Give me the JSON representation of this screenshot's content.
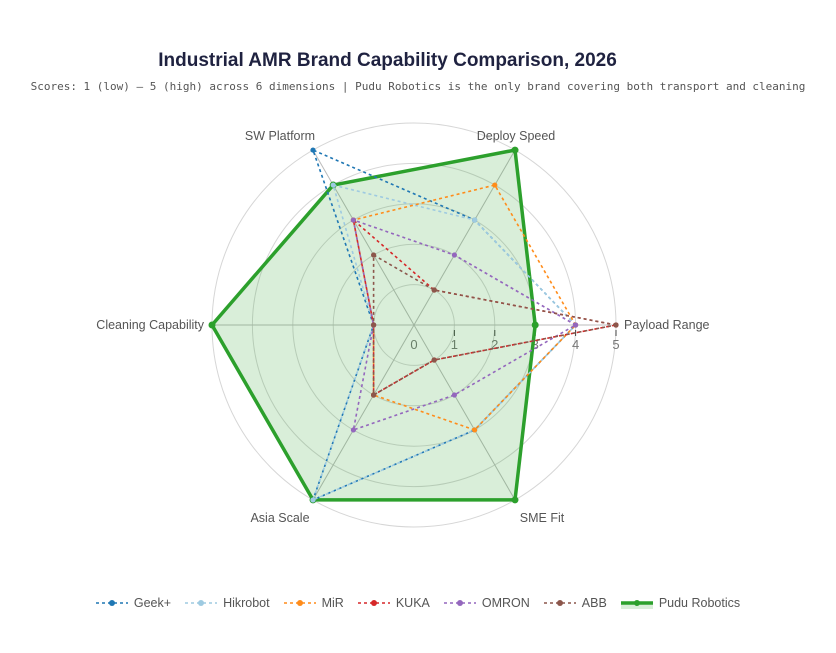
{
  "chart_data": {
    "type": "radar",
    "title": "Industrial AMR Brand Capability Comparison, 2026",
    "subtitle": "Scores: 1 (low) – 5 (high) across 6 dimensions | Pudu Robotics is the only brand covering both transport and cleaning",
    "axes": [
      "Payload Range",
      "Deploy Speed",
      "SW Platform",
      "Cleaning Capability",
      "Asia Scale",
      "SME Fit"
    ],
    "radial_range": [
      0,
      5
    ],
    "radial_ticks": [
      "0",
      "1",
      "2",
      "3",
      "4",
      "5"
    ],
    "legend_position": "bottom",
    "series": [
      {
        "name": "Geek+",
        "color": "#1f77b4",
        "values": [
          4,
          3,
          5,
          1,
          5,
          3
        ]
      },
      {
        "name": "Hikrobot",
        "color": "#9ecae1",
        "values": [
          4,
          3,
          4,
          1,
          5,
          3
        ]
      },
      {
        "name": "MiR",
        "color": "#ff8c1a",
        "values": [
          4,
          4,
          3,
          1,
          2,
          3
        ]
      },
      {
        "name": "KUKA",
        "color": "#d62728",
        "values": [
          5,
          1,
          3,
          1,
          2,
          1
        ]
      },
      {
        "name": "OMRON",
        "color": "#9467bd",
        "values": [
          4,
          2,
          3,
          1,
          3,
          2
        ]
      },
      {
        "name": "ABB",
        "color": "#8c564b",
        "values": [
          5,
          1,
          2,
          1,
          2,
          1
        ]
      },
      {
        "name": "Pudu Robotics",
        "color": "#2ca02c",
        "values": [
          3,
          5,
          4,
          5,
          5,
          5
        ],
        "filled": true
      }
    ]
  }
}
